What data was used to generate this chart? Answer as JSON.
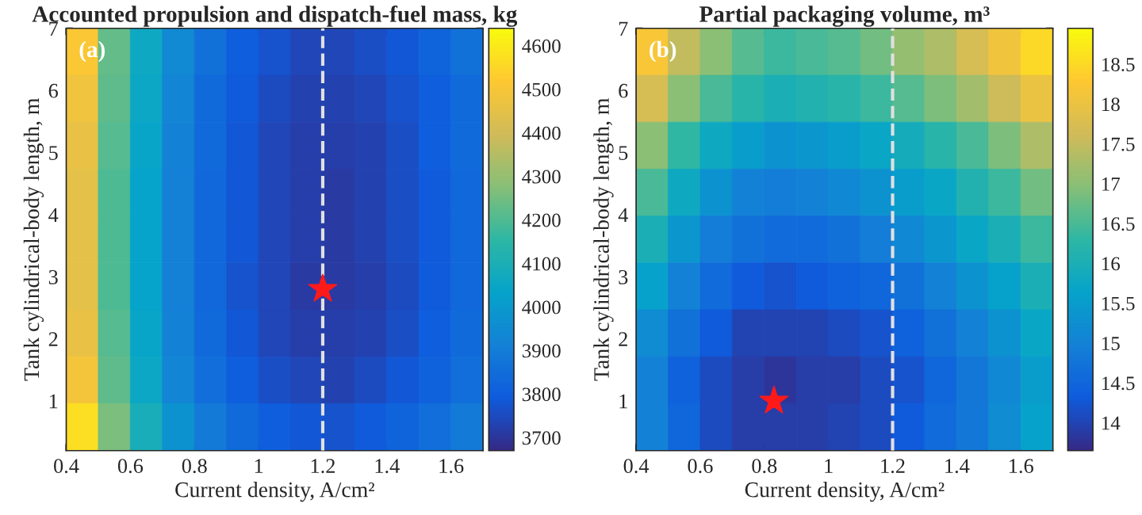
{
  "chart_data": [
    {
      "type": "heatmap",
      "title": "Accounted propulsion and dispatch-fuel mass, kg",
      "xlabel": "Current density, A/cm²",
      "ylabel": "Tank cylindrical-body length, m",
      "annotations": [
        "(a)"
      ],
      "cells": [
        [
          4510,
          4230,
          4060,
          3940,
          3860,
          3800,
          3770,
          3740,
          3740,
          3760,
          3780,
          3820,
          3860
        ],
        [
          4480,
          4220,
          4050,
          3930,
          3840,
          3790,
          3750,
          3730,
          3730,
          3740,
          3770,
          3800,
          3840
        ],
        [
          4460,
          4210,
          4040,
          3920,
          3840,
          3780,
          3740,
          3720,
          3720,
          3730,
          3760,
          3800,
          3840
        ],
        [
          4450,
          4200,
          4030,
          3910,
          3830,
          3780,
          3740,
          3720,
          3710,
          3730,
          3760,
          3790,
          3830
        ],
        [
          4450,
          4200,
          4030,
          3910,
          3830,
          3780,
          3740,
          3720,
          3710,
          3730,
          3760,
          3790,
          3830
        ],
        [
          4450,
          4200,
          4030,
          3910,
          3830,
          3770,
          3740,
          3710,
          3710,
          3720,
          3750,
          3790,
          3830
        ],
        [
          4460,
          4210,
          4040,
          3920,
          3840,
          3780,
          3740,
          3720,
          3720,
          3730,
          3760,
          3800,
          3840
        ],
        [
          4490,
          4220,
          4050,
          3930,
          3850,
          3800,
          3760,
          3740,
          3730,
          3750,
          3780,
          3810,
          3850
        ],
        [
          4570,
          4260,
          4090,
          3970,
          3890,
          3840,
          3800,
          3780,
          3770,
          3790,
          3820,
          3850,
          3890
        ]
      ],
      "colors": [
        "#352a87",
        "#0f5cdd",
        "#1481d6",
        "#06a4ca",
        "#2eb7a4",
        "#87bf77",
        "#d1bb59",
        "#fec832",
        "#f9fb0e"
      ],
      "clim": [
        3670,
        4640
      ],
      "cticks": [
        3700,
        3800,
        3900,
        4000,
        4100,
        4200,
        4300,
        4400,
        4500,
        4600
      ],
      "xlim": [
        0.4,
        1.7
      ],
      "xticks": [
        0.4,
        0.6,
        0.8,
        1,
        1.2,
        1.4,
        1.6
      ],
      "ylim": [
        0.2,
        7
      ],
      "yticks": [
        1,
        2,
        3,
        4,
        5,
        6,
        7
      ],
      "ref_lines": [
        {
          "axis": "x",
          "value": 1.2,
          "color": "#e0e0e0",
          "line_style": "dashed"
        }
      ],
      "series": [
        {
          "type": "scatter",
          "x": [
            1.2
          ],
          "values": [
            2.8
          ],
          "color": "#ff1a1a",
          "marker": "star"
        }
      ]
    },
    {
      "type": "heatmap",
      "title": "Partial packaging volume, m³",
      "xlabel": "Current density, A/cm²",
      "ylabel": "Tank cylindrical-body length, m",
      "annotations": [
        "(b)"
      ],
      "cells": [
        [
          18.2,
          17.5,
          17.0,
          16.6,
          16.4,
          16.5,
          16.6,
          16.8,
          17.1,
          17.3,
          17.7,
          18.1,
          18.5
        ],
        [
          17.7,
          17.0,
          16.5,
          16.2,
          16.0,
          16.1,
          16.2,
          16.4,
          16.6,
          16.9,
          17.2,
          17.6,
          18.0
        ],
        [
          17.0,
          16.3,
          15.8,
          15.5,
          15.3,
          15.4,
          15.5,
          15.7,
          15.9,
          16.2,
          16.5,
          16.9,
          17.3
        ],
        [
          16.5,
          15.8,
          15.3,
          15.0,
          14.9,
          15.0,
          15.1,
          15.3,
          15.5,
          15.7,
          16.1,
          16.4,
          16.8
        ],
        [
          16.0,
          15.4,
          14.9,
          14.7,
          14.6,
          14.6,
          14.7,
          14.9,
          15.1,
          15.4,
          15.7,
          16.0,
          16.4
        ],
        [
          15.6,
          15.0,
          14.6,
          14.3,
          14.2,
          14.3,
          14.4,
          14.5,
          14.7,
          15.0,
          15.3,
          15.6,
          16.0
        ],
        [
          15.2,
          14.7,
          14.3,
          14.0,
          14.0,
          14.0,
          14.1,
          14.2,
          14.4,
          14.7,
          15.0,
          15.3,
          15.7
        ],
        [
          15.0,
          14.4,
          14.1,
          13.9,
          13.8,
          13.9,
          13.9,
          14.1,
          14.2,
          14.5,
          14.8,
          15.1,
          15.5
        ],
        [
          15.0,
          14.5,
          14.1,
          13.9,
          13.9,
          13.9,
          14.0,
          14.1,
          14.3,
          14.6,
          14.8,
          15.2,
          15.6
        ]
      ],
      "colors": [
        "#352a87",
        "#0f5cdd",
        "#1481d6",
        "#06a4ca",
        "#2eb7a4",
        "#87bf77",
        "#d1bb59",
        "#fec832",
        "#f9fb0e"
      ],
      "clim": [
        13.65,
        18.95
      ],
      "cticks": [
        14,
        14.5,
        15,
        15.5,
        16,
        16.5,
        17,
        17.5,
        18,
        18.5
      ],
      "xlim": [
        0.4,
        1.7
      ],
      "xticks": [
        0.4,
        0.6,
        0.8,
        1,
        1.2,
        1.4,
        1.6
      ],
      "ylim": [
        0.2,
        7
      ],
      "yticks": [
        1,
        2,
        3,
        4,
        5,
        6,
        7
      ],
      "ref_lines": [
        {
          "axis": "x",
          "value": 1.2,
          "color": "#e0e0e0",
          "line_style": "dashed"
        }
      ],
      "series": [
        {
          "type": "scatter",
          "x": [
            0.83
          ],
          "values": [
            1.0
          ],
          "color": "#ff1a1a",
          "marker": "star"
        }
      ]
    }
  ]
}
